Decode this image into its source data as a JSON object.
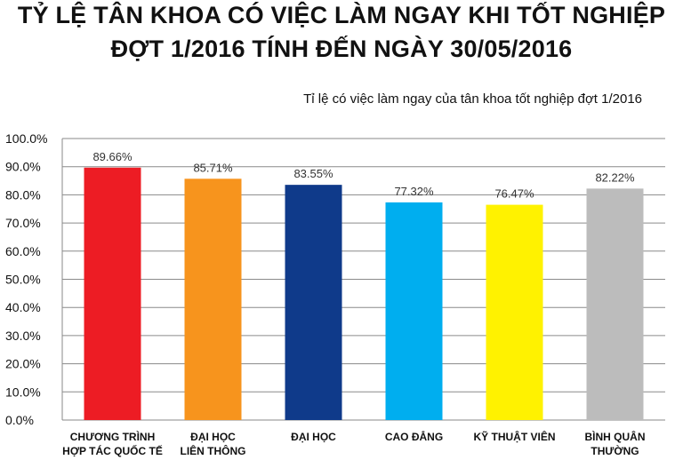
{
  "title": {
    "line1": "TỶ LỆ TÂN KHOA CÓ VIỆC LÀM NGAY KHI TỐT NGHIỆP",
    "line2": "ĐỢT 1/2016 TÍNH ĐẾN NGÀY 30/05/2016"
  },
  "chart_data": {
    "type": "bar",
    "subtitle": "Tỉ lệ có việc làm ngay của tân khoa tốt nghiệp đợt 1/2016",
    "categories": [
      [
        "CHƯƠNG TRÌNH",
        "HỢP TÁC QUỐC TẾ"
      ],
      [
        "ĐẠI HỌC",
        "LIÊN THÔNG"
      ],
      [
        "ĐẠI HỌC"
      ],
      [
        "CAO ĐẲNG"
      ],
      [
        "KỸ THUẬT VIÊN"
      ],
      [
        "BÌNH QUÂN",
        "THƯỜNG"
      ]
    ],
    "values": [
      89.66,
      85.71,
      83.55,
      77.32,
      76.47,
      82.22
    ],
    "value_labels": [
      "89.66%",
      "85.71%",
      "83.55%",
      "77.32%",
      "76.47%",
      "82.22%"
    ],
    "colors": [
      "#ed1c24",
      "#f7941d",
      "#0f3a8a",
      "#00aeef",
      "#fff200",
      "#bcbcbc"
    ],
    "ylim": [
      0,
      100
    ],
    "yticks": [
      "0.0%",
      "10.0%",
      "20.0%",
      "30.0%",
      "40.0%",
      "50.0%",
      "60.0%",
      "70.0%",
      "80.0%",
      "90.0%",
      "100.0%"
    ],
    "grid": true,
    "gridline_color": "#8a8a8a"
  }
}
